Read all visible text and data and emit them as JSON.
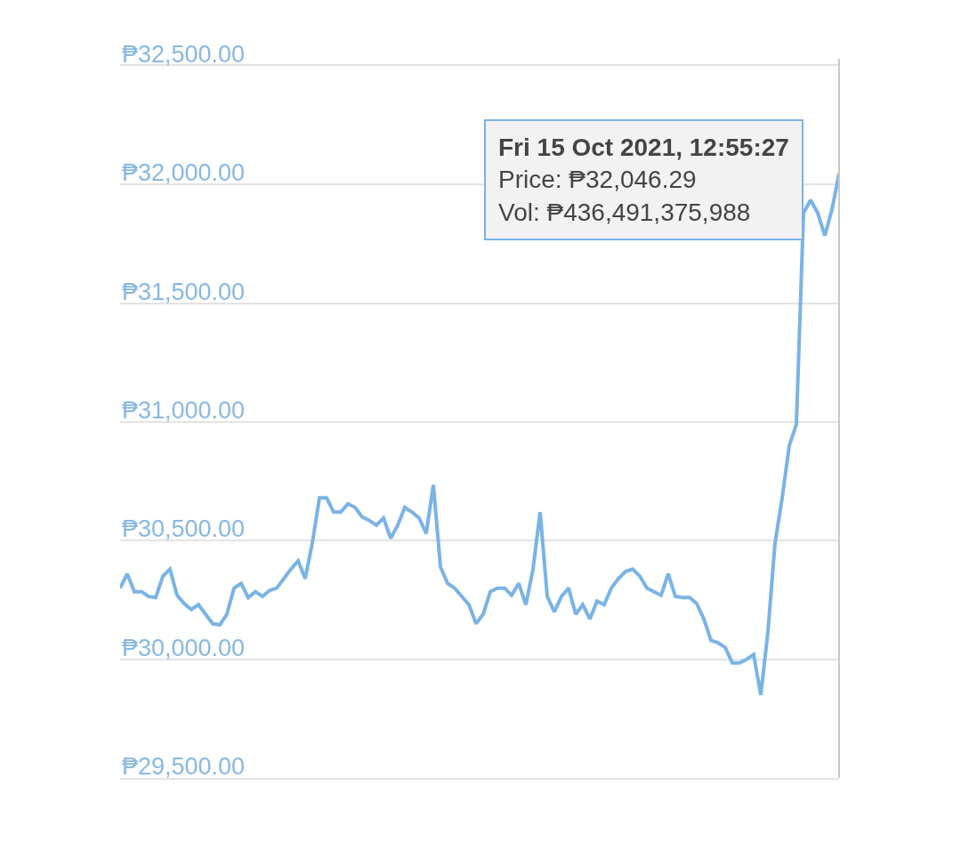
{
  "chart_data": {
    "type": "line",
    "categories": [
      null,
      null,
      null,
      null,
      null,
      null,
      null,
      null,
      null,
      null,
      null,
      null,
      null,
      null,
      null,
      null,
      null,
      null,
      null,
      null,
      null,
      null,
      null,
      null,
      null,
      null,
      null,
      null,
      null,
      null,
      null,
      null,
      null,
      null,
      null,
      null,
      null,
      null,
      null,
      null,
      null,
      null,
      null,
      null,
      null,
      null,
      null,
      null,
      null,
      null,
      null,
      null,
      null,
      null,
      null,
      null,
      null,
      null,
      null,
      null,
      null,
      null,
      null,
      null,
      null,
      null,
      null,
      null,
      null,
      null,
      null,
      null,
      null,
      null,
      null,
      null,
      null,
      null,
      null,
      null,
      null,
      null,
      null,
      null,
      null,
      null,
      null,
      null,
      null,
      null,
      null,
      null,
      null,
      null,
      null,
      null,
      null,
      null,
      null,
      null,
      null,
      null
    ],
    "series": [
      {
        "color": "#7ab3e6",
        "values": [
          30300,
          30360,
          30285,
          30285,
          30265,
          30260,
          30350,
          30380,
          30270,
          30235,
          30210,
          30230,
          30190,
          30150,
          30145,
          30190,
          30300,
          30320,
          30260,
          30285,
          30265,
          30290,
          30300,
          30340,
          30380,
          30415,
          30340,
          30490,
          30680,
          30680,
          30620,
          30620,
          30655,
          30640,
          30600,
          30585,
          30565,
          30595,
          30510,
          30565,
          30640,
          30620,
          30595,
          30530,
          30735,
          30390,
          30320,
          30300,
          30265,
          30230,
          30150,
          30190,
          30285,
          30300,
          30300,
          30270,
          30320,
          30230,
          30380,
          30620,
          30265,
          30200,
          30265,
          30300,
          30190,
          30230,
          30170,
          30245,
          30230,
          30300,
          30340,
          30370,
          30380,
          30350,
          30300,
          30285,
          30270,
          30360,
          30265,
          30260,
          30260,
          30235,
          30170,
          30080,
          30070,
          30050,
          29985,
          29985,
          30000,
          30020,
          29850,
          30115,
          30490,
          30680,
          30900,
          30990,
          31880,
          31935,
          31880,
          31785,
          31895,
          32046.29
        ]
      }
    ],
    "ylim": [
      29500,
      32500
    ],
    "yticks": [
      {
        "value": 29500,
        "label": "₱29,500.00"
      },
      {
        "value": 30000,
        "label": "₱30,000.00"
      },
      {
        "value": 30500,
        "label": "₱30,500.00"
      },
      {
        "value": 31000,
        "label": "₱31,000.00"
      },
      {
        "value": 31500,
        "label": "₱31,500.00"
      },
      {
        "value": 32000,
        "label": "₱32,000.00"
      },
      {
        "value": 32500,
        "label": "₱32,500.00"
      }
    ],
    "grid": "y",
    "tick_labels": "y",
    "legend": false,
    "line_style": "solid",
    "annotations": [
      "Fri 15 Oct 2021, 12:55:27\nPrice: ₱32,046.29\nVol: ₱436,491,375,988"
    ]
  }
}
